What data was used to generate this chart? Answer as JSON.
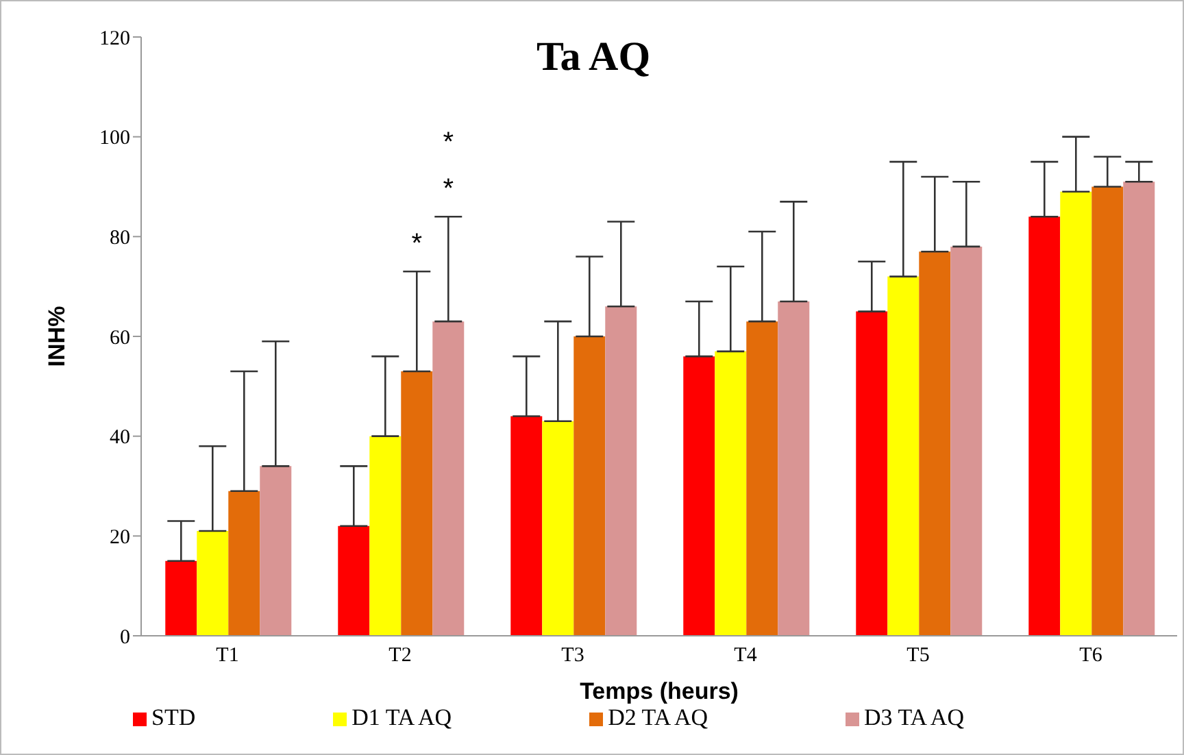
{
  "chart_data": {
    "type": "bar",
    "title": "Ta AQ",
    "xlabel": "Temps (heurs)",
    "ylabel": "INH%",
    "categories": [
      "T1",
      "T2",
      "T3",
      "T4",
      "T5",
      "T6"
    ],
    "series": [
      {
        "name": "STD",
        "color": "#ff0000",
        "values": [
          15,
          22,
          44,
          56,
          65,
          84
        ],
        "errors": [
          [
            15,
            23
          ],
          [
            22,
            34
          ],
          [
            44,
            56
          ],
          [
            56,
            67
          ],
          [
            65,
            75
          ],
          [
            84,
            95
          ]
        ]
      },
      {
        "name": "D1 TA AQ",
        "color": "#ffff00",
        "values": [
          21,
          40,
          43,
          57,
          72,
          89
        ],
        "errors": [
          [
            21,
            38
          ],
          [
            40,
            56
          ],
          [
            43,
            63
          ],
          [
            57,
            74
          ],
          [
            72,
            95
          ],
          [
            89,
            100
          ]
        ]
      },
      {
        "name": "D2 TA AQ",
        "color": "#e36c0a",
        "values": [
          29,
          53,
          60,
          63,
          77,
          90
        ],
        "errors": [
          [
            29,
            53
          ],
          [
            53,
            73
          ],
          [
            60,
            76
          ],
          [
            63,
            81
          ],
          [
            77,
            92
          ],
          [
            90,
            96
          ]
        ]
      },
      {
        "name": "D3 TA AQ",
        "color": "#d99594",
        "values": [
          34,
          63,
          66,
          67,
          78,
          91
        ],
        "errors": [
          [
            34,
            59
          ],
          [
            63,
            84
          ],
          [
            66,
            83
          ],
          [
            67,
            87
          ],
          [
            78,
            91
          ],
          [
            91,
            95
          ]
        ]
      }
    ],
    "annotations": [
      "*",
      "*",
      "*"
    ],
    "ylim": [
      0,
      120
    ],
    "yticks": [
      0,
      20,
      40,
      60,
      80,
      100,
      120
    ],
    "grid": false,
    "legend": "bottom"
  }
}
